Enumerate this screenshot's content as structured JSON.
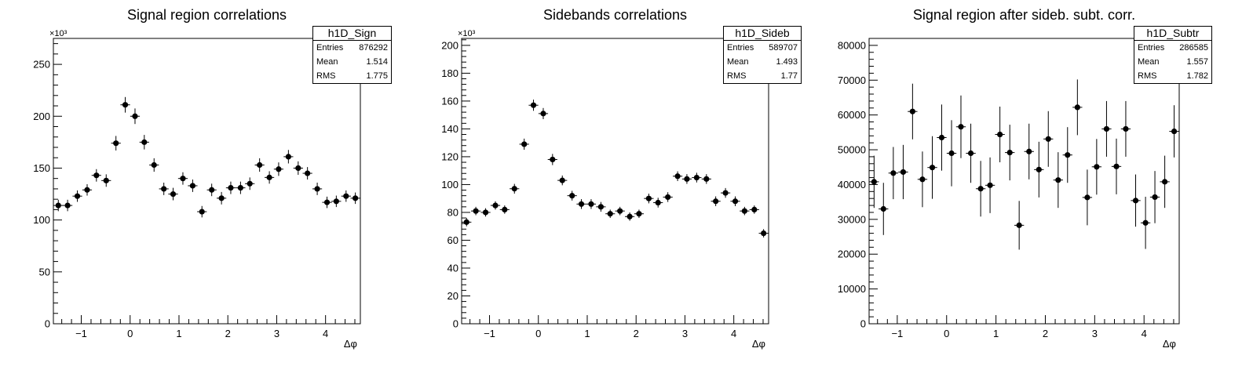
{
  "chart_data": [
    {
      "type": "scatter",
      "title": "Signal region correlations",
      "xlabel": "Δφ",
      "ylabel": "",
      "exponent_label": "×10³",
      "xlim": [
        -1.5708,
        4.7124
      ],
      "ylim": [
        0,
        275
      ],
      "x_ticks": [
        -1,
        0,
        1,
        2,
        3,
        4
      ],
      "y_ticks": [
        0,
        50,
        100,
        150,
        200,
        250
      ],
      "stats": {
        "name": "h1D_Sign",
        "entries_label": "Entries",
        "entries": "876292",
        "mean_label": "Mean",
        "mean": "1.514",
        "rms_label": "RMS",
        "rms": "1.775"
      },
      "points": [
        {
          "x": -1.47,
          "y": 114,
          "err": 5.5
        },
        {
          "x": -1.28,
          "y": 114,
          "err": 5.5
        },
        {
          "x": -1.08,
          "y": 123,
          "err": 5.5
        },
        {
          "x": -0.88,
          "y": 129,
          "err": 5.5
        },
        {
          "x": -0.69,
          "y": 143,
          "err": 6
        },
        {
          "x": -0.49,
          "y": 138,
          "err": 6
        },
        {
          "x": -0.29,
          "y": 174,
          "err": 7
        },
        {
          "x": -0.1,
          "y": 211,
          "err": 7.5
        },
        {
          "x": 0.1,
          "y": 200,
          "err": 7.5
        },
        {
          "x": 0.29,
          "y": 175,
          "err": 7
        },
        {
          "x": 0.49,
          "y": 153,
          "err": 6.5
        },
        {
          "x": 0.69,
          "y": 130,
          "err": 6
        },
        {
          "x": 0.88,
          "y": 125,
          "err": 6
        },
        {
          "x": 1.08,
          "y": 140,
          "err": 6
        },
        {
          "x": 1.28,
          "y": 133,
          "err": 6
        },
        {
          "x": 1.47,
          "y": 108,
          "err": 5.5
        },
        {
          "x": 1.67,
          "y": 129,
          "err": 6
        },
        {
          "x": 1.87,
          "y": 121,
          "err": 6
        },
        {
          "x": 2.06,
          "y": 131,
          "err": 6
        },
        {
          "x": 2.26,
          "y": 131,
          "err": 6
        },
        {
          "x": 2.45,
          "y": 135,
          "err": 6
        },
        {
          "x": 2.65,
          "y": 153,
          "err": 6.5
        },
        {
          "x": 2.85,
          "y": 141,
          "err": 6
        },
        {
          "x": 3.04,
          "y": 149,
          "err": 6.5
        },
        {
          "x": 3.24,
          "y": 161,
          "err": 6.5
        },
        {
          "x": 3.44,
          "y": 150,
          "err": 6.5
        },
        {
          "x": 3.63,
          "y": 145,
          "err": 6
        },
        {
          "x": 3.83,
          "y": 130,
          "err": 6
        },
        {
          "x": 4.03,
          "y": 117,
          "err": 5.5
        },
        {
          "x": 4.22,
          "y": 118,
          "err": 5.5
        },
        {
          "x": 4.42,
          "y": 123,
          "err": 5.5
        },
        {
          "x": 4.61,
          "y": 121,
          "err": 5.5
        }
      ]
    },
    {
      "type": "scatter",
      "title": "Sidebands correlations",
      "xlabel": "Δφ",
      "ylabel": "",
      "exponent_label": "×10³",
      "xlim": [
        -1.5708,
        4.7124
      ],
      "ylim": [
        0,
        205
      ],
      "x_ticks": [
        -1,
        0,
        1,
        2,
        3,
        4
      ],
      "y_ticks": [
        0,
        20,
        40,
        60,
        80,
        100,
        120,
        140,
        160,
        180,
        200
      ],
      "stats": {
        "name": "h1D_Sideb",
        "entries_label": "Entries",
        "entries": "589707",
        "mean_label": "Mean",
        "mean": "1.493",
        "rms_label": "RMS",
        "rms": "1.77"
      },
      "points": [
        {
          "x": -1.47,
          "y": 73,
          "err": 3
        },
        {
          "x": -1.28,
          "y": 81,
          "err": 3
        },
        {
          "x": -1.08,
          "y": 80,
          "err": 3
        },
        {
          "x": -0.88,
          "y": 85,
          "err": 3
        },
        {
          "x": -0.69,
          "y": 82,
          "err": 3
        },
        {
          "x": -0.49,
          "y": 97,
          "err": 3.5
        },
        {
          "x": -0.29,
          "y": 129,
          "err": 4
        },
        {
          "x": -0.1,
          "y": 157,
          "err": 4
        },
        {
          "x": 0.1,
          "y": 151,
          "err": 4
        },
        {
          "x": 0.29,
          "y": 118,
          "err": 4
        },
        {
          "x": 0.49,
          "y": 103,
          "err": 3.5
        },
        {
          "x": 0.69,
          "y": 92,
          "err": 3.5
        },
        {
          "x": 0.88,
          "y": 86,
          "err": 3.5
        },
        {
          "x": 1.08,
          "y": 86,
          "err": 3.5
        },
        {
          "x": 1.28,
          "y": 84,
          "err": 3.5
        },
        {
          "x": 1.47,
          "y": 79,
          "err": 3
        },
        {
          "x": 1.67,
          "y": 81,
          "err": 3
        },
        {
          "x": 1.87,
          "y": 77,
          "err": 3
        },
        {
          "x": 2.06,
          "y": 79,
          "err": 3
        },
        {
          "x": 2.26,
          "y": 90,
          "err": 3.5
        },
        {
          "x": 2.45,
          "y": 87,
          "err": 3.5
        },
        {
          "x": 2.65,
          "y": 91,
          "err": 3.5
        },
        {
          "x": 2.85,
          "y": 106,
          "err": 3.5
        },
        {
          "x": 3.04,
          "y": 104,
          "err": 3.5
        },
        {
          "x": 3.24,
          "y": 105,
          "err": 3.5
        },
        {
          "x": 3.44,
          "y": 104,
          "err": 3.5
        },
        {
          "x": 3.63,
          "y": 88,
          "err": 3.5
        },
        {
          "x": 3.83,
          "y": 94,
          "err": 3.5
        },
        {
          "x": 4.03,
          "y": 88,
          "err": 3.5
        },
        {
          "x": 4.22,
          "y": 81,
          "err": 3
        },
        {
          "x": 4.42,
          "y": 82,
          "err": 3
        },
        {
          "x": 4.61,
          "y": 65,
          "err": 3
        }
      ]
    },
    {
      "type": "scatter",
      "title": "Signal region after sideb. subt. corr.",
      "xlabel": "Δφ",
      "ylabel": "",
      "exponent_label": "",
      "xlim": [
        -1.5708,
        4.7124
      ],
      "ylim": [
        0,
        82000
      ],
      "x_ticks": [
        -1,
        0,
        1,
        2,
        3,
        4
      ],
      "y_ticks": [
        0,
        10000,
        20000,
        30000,
        40000,
        50000,
        60000,
        70000,
        80000
      ],
      "stats": {
        "name": "h1D_Subtr",
        "entries_label": "Entries",
        "entries": "286585",
        "mean_label": "Mean",
        "mean": "1.557",
        "rms_label": "RMS",
        "rms": "1.782"
      },
      "points": [
        {
          "x": -1.47,
          "y": 40800,
          "err": 7500
        },
        {
          "x": -1.28,
          "y": 33000,
          "err": 7500
        },
        {
          "x": -1.08,
          "y": 43300,
          "err": 7500
        },
        {
          "x": -0.88,
          "y": 43600,
          "err": 7800
        },
        {
          "x": -0.69,
          "y": 61000,
          "err": 8000
        },
        {
          "x": -0.49,
          "y": 41500,
          "err": 8000
        },
        {
          "x": -0.29,
          "y": 44900,
          "err": 9000
        },
        {
          "x": -0.1,
          "y": 53500,
          "err": 9500
        },
        {
          "x": 0.1,
          "y": 49000,
          "err": 9500
        },
        {
          "x": 0.29,
          "y": 56600,
          "err": 9000
        },
        {
          "x": 0.49,
          "y": 49000,
          "err": 8500
        },
        {
          "x": 0.69,
          "y": 38800,
          "err": 8000
        },
        {
          "x": 0.88,
          "y": 39800,
          "err": 8000
        },
        {
          "x": 1.08,
          "y": 54400,
          "err": 8000
        },
        {
          "x": 1.28,
          "y": 49200,
          "err": 8000
        },
        {
          "x": 1.47,
          "y": 28300,
          "err": 7000
        },
        {
          "x": 1.67,
          "y": 49500,
          "err": 8000
        },
        {
          "x": 1.87,
          "y": 44300,
          "err": 8000
        },
        {
          "x": 2.06,
          "y": 53100,
          "err": 8000
        },
        {
          "x": 2.26,
          "y": 41300,
          "err": 8000
        },
        {
          "x": 2.45,
          "y": 48500,
          "err": 8000
        },
        {
          "x": 2.65,
          "y": 62200,
          "err": 8000
        },
        {
          "x": 2.85,
          "y": 36300,
          "err": 8000
        },
        {
          "x": 3.04,
          "y": 45100,
          "err": 8000
        },
        {
          "x": 3.24,
          "y": 56000,
          "err": 8000
        },
        {
          "x": 3.44,
          "y": 45200,
          "err": 8000
        },
        {
          "x": 3.63,
          "y": 56000,
          "err": 8000
        },
        {
          "x": 3.83,
          "y": 35400,
          "err": 7500
        },
        {
          "x": 4.03,
          "y": 29000,
          "err": 7500
        },
        {
          "x": 4.22,
          "y": 36400,
          "err": 7500
        },
        {
          "x": 4.42,
          "y": 40800,
          "err": 7500
        },
        {
          "x": 4.61,
          "y": 55300,
          "err": 7500
        }
      ]
    }
  ]
}
